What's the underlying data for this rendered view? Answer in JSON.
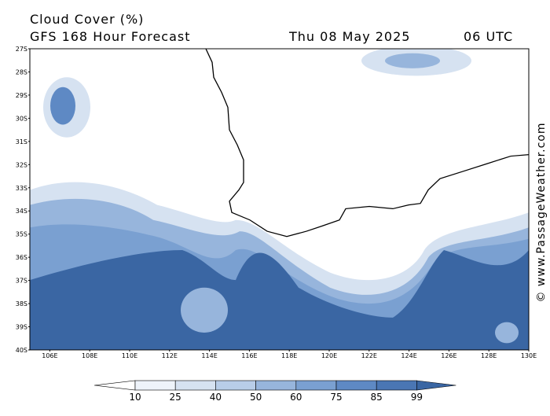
{
  "header": {
    "title": "Cloud Cover (%)",
    "product": "GFS 168 Hour Forecast",
    "date": "Thu 08 May 2025",
    "time": "06 UTC"
  },
  "map": {
    "lat_labels": [
      "27S",
      "28S",
      "29S",
      "30S",
      "31S",
      "32S",
      "33S",
      "34S",
      "35S",
      "36S",
      "37S",
      "38S",
      "39S",
      "40S"
    ],
    "lon_labels": [
      "106E",
      "108E",
      "110E",
      "112E",
      "114E",
      "116E",
      "118E",
      "120E",
      "122E",
      "124E",
      "126E",
      "128E",
      "130E"
    ]
  },
  "legend": {
    "labels": [
      10,
      25,
      40,
      50,
      60,
      75,
      85,
      99
    ],
    "colors": [
      "#ffffff",
      "#eef3fa",
      "#d6e2f1",
      "#b8cde8",
      "#97b5dc",
      "#7aa0d1",
      "#5e89c4",
      "#4a76b4",
      "#3a66a3"
    ]
  },
  "watermark": "© www.PassageWeather.com"
}
